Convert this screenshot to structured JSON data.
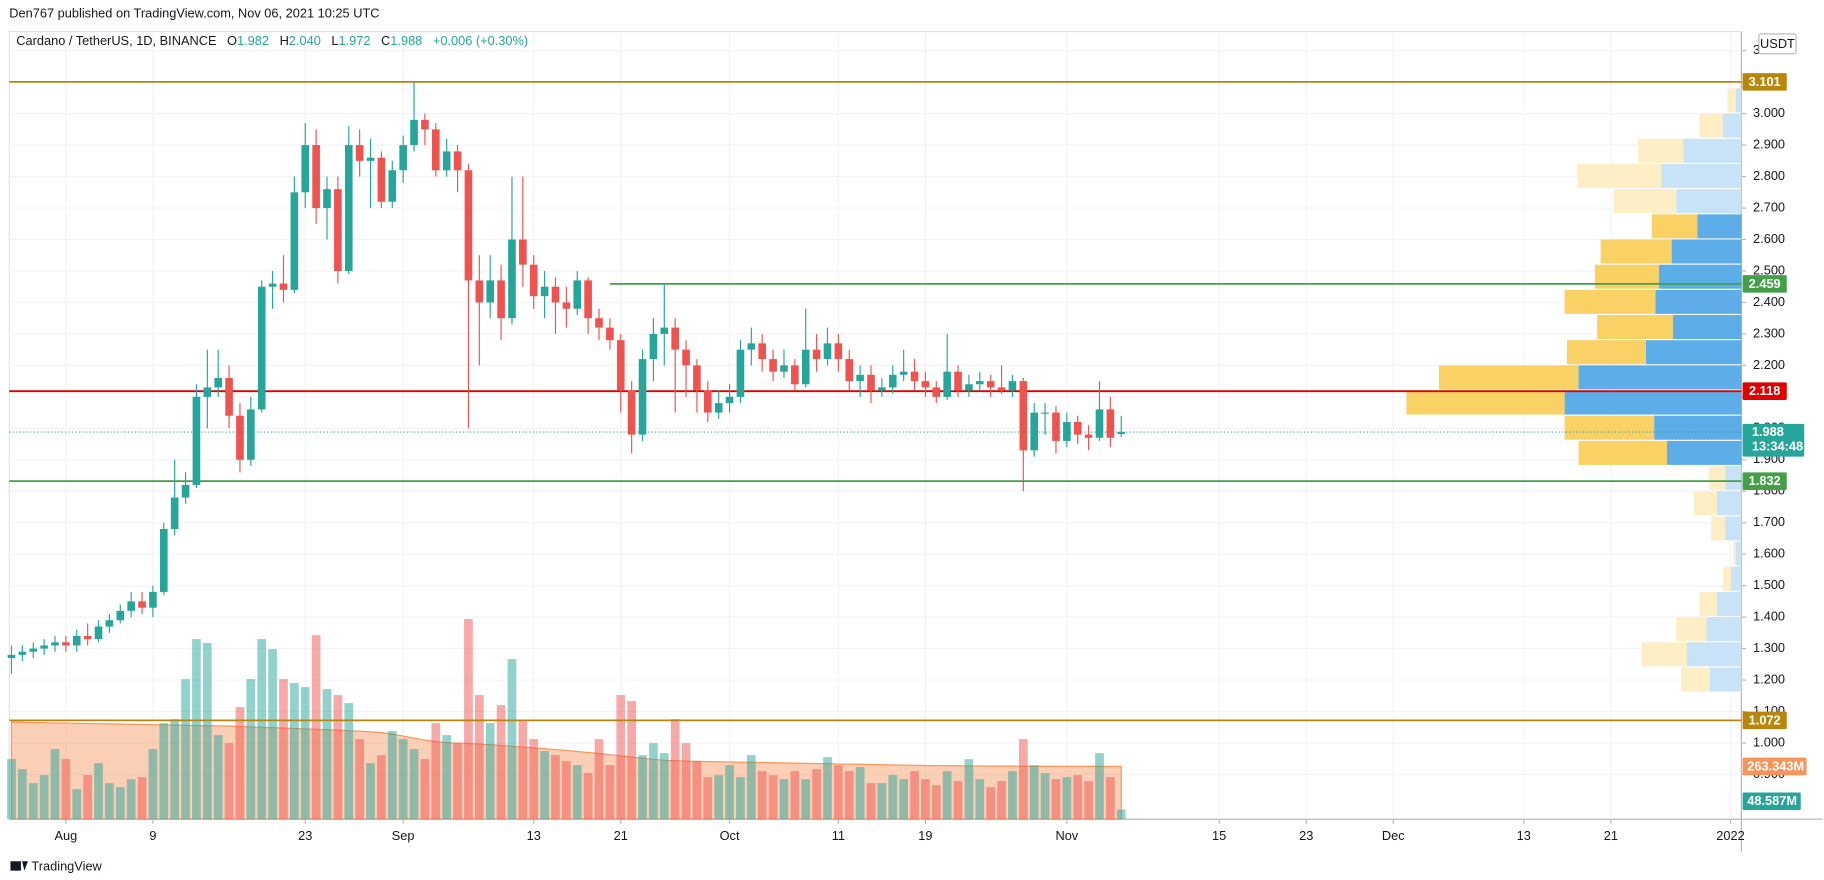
{
  "header": "Den767 published on TradingView.com, Nov 06, 2021 10:25 UTC",
  "logo": "TradingView",
  "currency": "USDT",
  "chart_data": {
    "type": "candlestick",
    "legend": {
      "symbol": "Cardano / TetherUS, 1D, BINANCE",
      "items": [
        {
          "key": "O",
          "text": "1.982"
        },
        {
          "key": "H",
          "text": "2.040"
        },
        {
          "key": "L",
          "text": "1.972"
        },
        {
          "key": "C",
          "text": "1.988"
        }
      ],
      "change": "+0.006 (+0.30%)"
    },
    "up_color": "#26a69a",
    "down_color": "#ef5350",
    "xlim": [
      -0.2,
      159
    ],
    "xticks": [
      {
        "value": 5,
        "label": "Aug"
      },
      {
        "value": 13,
        "label": "9"
      },
      {
        "value": 27,
        "label": "23"
      },
      {
        "value": 36,
        "label": "Sep"
      },
      {
        "value": 48,
        "label": "13"
      },
      {
        "value": 56,
        "label": "21"
      },
      {
        "value": 66,
        "label": "Oct"
      },
      {
        "value": 76,
        "label": "11"
      },
      {
        "value": 84,
        "label": "19"
      },
      {
        "value": 97,
        "label": "Nov"
      },
      {
        "value": 111,
        "label": "15"
      },
      {
        "value": 119,
        "label": "23"
      },
      {
        "value": 127,
        "label": "Dec"
      },
      {
        "value": 139,
        "label": "13"
      },
      {
        "value": 147,
        "label": "21"
      },
      {
        "value": 158,
        "label": "2022"
      }
    ],
    "ylim": [
      0.758,
      3.257
    ],
    "yticks": [
      {
        "value": 0.9,
        "label": "0.900"
      },
      {
        "value": 1.0,
        "label": "1.000"
      },
      {
        "value": 1.1,
        "label": "1.100"
      },
      {
        "value": 1.2,
        "label": "1.200"
      },
      {
        "value": 1.3,
        "label": "1.300"
      },
      {
        "value": 1.4,
        "label": "1.400"
      },
      {
        "value": 1.5,
        "label": "1.500"
      },
      {
        "value": 1.6,
        "label": "1.600"
      },
      {
        "value": 1.7,
        "label": "1.700"
      },
      {
        "value": 1.8,
        "label": "1.800"
      },
      {
        "value": 1.9,
        "label": "1.900"
      },
      {
        "value": 2.0,
        "label": "2.000"
      },
      {
        "value": 2.1,
        "label": "2.100"
      },
      {
        "value": 2.2,
        "label": "2.200"
      },
      {
        "value": 2.3,
        "label": "2.300"
      },
      {
        "value": 2.4,
        "label": "2.400"
      },
      {
        "value": 2.5,
        "label": "2.500"
      },
      {
        "value": 2.6,
        "label": "2.600"
      },
      {
        "value": 2.7,
        "label": "2.700"
      },
      {
        "value": 2.8,
        "label": "2.800"
      },
      {
        "value": 2.9,
        "label": "2.900"
      },
      {
        "value": 3.0,
        "label": "3.000"
      },
      {
        "value": 3.1,
        "label": "3.100"
      },
      {
        "value": 3.2,
        "label": "3.200"
      }
    ],
    "grid": true,
    "ohlc": [
      [
        1.27,
        1.31,
        1.22,
        1.28
      ],
      [
        1.28,
        1.31,
        1.26,
        1.29
      ],
      [
        1.29,
        1.32,
        1.27,
        1.3
      ],
      [
        1.3,
        1.33,
        1.28,
        1.31
      ],
      [
        1.31,
        1.34,
        1.29,
        1.32
      ],
      [
        1.32,
        1.34,
        1.29,
        1.31
      ],
      [
        1.31,
        1.36,
        1.29,
        1.34
      ],
      [
        1.34,
        1.38,
        1.31,
        1.33
      ],
      [
        1.33,
        1.39,
        1.32,
        1.37
      ],
      [
        1.37,
        1.41,
        1.35,
        1.39
      ],
      [
        1.39,
        1.44,
        1.38,
        1.42
      ],
      [
        1.42,
        1.48,
        1.4,
        1.45
      ],
      [
        1.45,
        1.48,
        1.41,
        1.43
      ],
      [
        1.43,
        1.5,
        1.4,
        1.48
      ],
      [
        1.48,
        1.7,
        1.47,
        1.68
      ],
      [
        1.68,
        1.9,
        1.66,
        1.78
      ],
      [
        1.78,
        1.86,
        1.76,
        1.82
      ],
      [
        1.82,
        2.14,
        1.81,
        2.1
      ],
      [
        2.1,
        2.25,
        2.0,
        2.13
      ],
      [
        2.13,
        2.25,
        2.1,
        2.16
      ],
      [
        2.16,
        2.2,
        2.0,
        2.04
      ],
      [
        2.04,
        2.08,
        1.86,
        1.9
      ],
      [
        1.9,
        2.1,
        1.88,
        2.06
      ],
      [
        2.06,
        2.47,
        2.05,
        2.45
      ],
      [
        2.45,
        2.5,
        2.38,
        2.46
      ],
      [
        2.46,
        2.55,
        2.4,
        2.44
      ],
      [
        2.44,
        2.8,
        2.43,
        2.75
      ],
      [
        2.75,
        2.97,
        2.7,
        2.9
      ],
      [
        2.9,
        2.95,
        2.65,
        2.7
      ],
      [
        2.7,
        2.8,
        2.6,
        2.76
      ],
      [
        2.76,
        2.8,
        2.46,
        2.5
      ],
      [
        2.5,
        2.96,
        2.49,
        2.9
      ],
      [
        2.9,
        2.95,
        2.8,
        2.85
      ],
      [
        2.85,
        2.92,
        2.7,
        2.86
      ],
      [
        2.86,
        2.88,
        2.7,
        2.72
      ],
      [
        2.72,
        2.85,
        2.7,
        2.82
      ],
      [
        2.82,
        2.93,
        2.78,
        2.9
      ],
      [
        2.9,
        3.1,
        2.88,
        2.98
      ],
      [
        2.98,
        3.0,
        2.9,
        2.95
      ],
      [
        2.95,
        2.97,
        2.8,
        2.82
      ],
      [
        2.82,
        2.92,
        2.8,
        2.88
      ],
      [
        2.88,
        2.9,
        2.75,
        2.82
      ],
      [
        2.82,
        2.84,
        2.0,
        2.47
      ],
      [
        2.47,
        2.55,
        2.2,
        2.4
      ],
      [
        2.4,
        2.55,
        2.35,
        2.47
      ],
      [
        2.47,
        2.52,
        2.28,
        2.35
      ],
      [
        2.35,
        2.8,
        2.33,
        2.6
      ],
      [
        2.6,
        2.8,
        2.45,
        2.52
      ],
      [
        2.52,
        2.55,
        2.38,
        2.42
      ],
      [
        2.42,
        2.5,
        2.35,
        2.45
      ],
      [
        2.45,
        2.48,
        2.3,
        2.4
      ],
      [
        2.4,
        2.45,
        2.32,
        2.38
      ],
      [
        2.38,
        2.5,
        2.36,
        2.47
      ],
      [
        2.47,
        2.48,
        2.3,
        2.35
      ],
      [
        2.35,
        2.38,
        2.28,
        2.32
      ],
      [
        2.32,
        2.35,
        2.25,
        2.28
      ],
      [
        2.28,
        2.3,
        2.05,
        2.12
      ],
      [
        2.12,
        2.15,
        1.92,
        1.98
      ],
      [
        1.98,
        2.25,
        1.96,
        2.22
      ],
      [
        2.22,
        2.35,
        2.15,
        2.3
      ],
      [
        2.3,
        2.46,
        2.2,
        2.32
      ],
      [
        2.32,
        2.35,
        2.05,
        2.25
      ],
      [
        2.25,
        2.28,
        2.1,
        2.2
      ],
      [
        2.2,
        2.22,
        2.05,
        2.12
      ],
      [
        2.12,
        2.15,
        2.02,
        2.05
      ],
      [
        2.05,
        2.12,
        2.03,
        2.08
      ],
      [
        2.08,
        2.14,
        2.05,
        2.1
      ],
      [
        2.1,
        2.28,
        2.08,
        2.25
      ],
      [
        2.25,
        2.32,
        2.2,
        2.27
      ],
      [
        2.27,
        2.3,
        2.18,
        2.22
      ],
      [
        2.22,
        2.25,
        2.15,
        2.18
      ],
      [
        2.18,
        2.25,
        2.16,
        2.2
      ],
      [
        2.2,
        2.22,
        2.12,
        2.14
      ],
      [
        2.14,
        2.38,
        2.13,
        2.25
      ],
      [
        2.25,
        2.3,
        2.18,
        2.22
      ],
      [
        2.22,
        2.32,
        2.2,
        2.27
      ],
      [
        2.27,
        2.3,
        2.18,
        2.22
      ],
      [
        2.22,
        2.25,
        2.12,
        2.15
      ],
      [
        2.15,
        2.2,
        2.1,
        2.17
      ],
      [
        2.17,
        2.2,
        2.08,
        2.12
      ],
      [
        2.12,
        2.16,
        2.1,
        2.13
      ],
      [
        2.13,
        2.2,
        2.11,
        2.17
      ],
      [
        2.17,
        2.25,
        2.15,
        2.18
      ],
      [
        2.18,
        2.22,
        2.12,
        2.15
      ],
      [
        2.15,
        2.18,
        2.1,
        2.13
      ],
      [
        2.13,
        2.15,
        2.08,
        2.1
      ],
      [
        2.1,
        2.3,
        2.09,
        2.18
      ],
      [
        2.18,
        2.2,
        2.1,
        2.12
      ],
      [
        2.12,
        2.17,
        2.1,
        2.14
      ],
      [
        2.14,
        2.18,
        2.12,
        2.15
      ],
      [
        2.15,
        2.17,
        2.1,
        2.13
      ],
      [
        2.13,
        2.2,
        2.11,
        2.12
      ],
      [
        2.12,
        2.17,
        2.1,
        2.15
      ],
      [
        2.15,
        2.16,
        1.8,
        1.93
      ],
      [
        1.93,
        2.08,
        1.91,
        2.05
      ],
      [
        2.05,
        2.08,
        1.98,
        2.05
      ],
      [
        2.05,
        2.07,
        1.92,
        1.96
      ],
      [
        1.96,
        2.05,
        1.94,
        2.02
      ],
      [
        2.02,
        2.04,
        1.95,
        1.98
      ],
      [
        1.98,
        2.01,
        1.93,
        1.97
      ],
      [
        1.97,
        2.15,
        1.96,
        2.06
      ],
      [
        2.06,
        2.1,
        1.94,
        1.97
      ],
      [
        1.982,
        2.04,
        1.972,
        1.988
      ]
    ],
    "volume": [
      300,
      250,
      180,
      220,
      350,
      300,
      150,
      220,
      280,
      180,
      160,
      200,
      210,
      350,
      480,
      500,
      700,
      900,
      880,
      420,
      380,
      560,
      700,
      900,
      850,
      700,
      680,
      660,
      920,
      650,
      620,
      580,
      400,
      280,
      320,
      440,
      400,
      350,
      300,
      480,
      420,
      380,
      1000,
      620,
      480,
      570,
      800,
      490,
      400,
      340,
      320,
      290,
      270,
      230,
      400,
      270,
      620,
      590,
      320,
      380,
      330,
      500,
      380,
      290,
      210,
      220,
      270,
      210,
      320,
      240,
      220,
      200,
      240,
      200,
      250,
      310,
      270,
      240,
      260,
      180,
      180,
      220,
      200,
      240,
      200,
      170,
      240,
      190,
      300,
      200,
      160,
      190,
      240,
      400,
      270,
      230,
      200,
      210,
      220,
      190,
      330,
      210,
      48.587
    ],
    "volume_ylim": [
      0,
      3930
    ],
    "volume_ma": [
      485,
      484,
      483,
      482,
      481,
      480,
      479,
      478,
      477,
      476,
      475,
      474,
      473,
      472,
      471,
      470,
      469,
      468,
      467,
      466,
      465,
      463,
      461,
      459,
      457,
      455,
      453,
      451,
      449,
      447,
      445,
      442,
      439,
      436,
      433,
      425,
      415,
      405,
      395,
      388,
      382,
      380,
      378,
      375,
      372,
      368,
      364,
      360,
      356,
      352,
      348,
      343,
      338,
      333,
      328,
      322,
      316,
      310,
      304,
      298,
      294,
      292,
      290,
      289,
      288,
      287,
      286,
      285,
      284,
      283,
      282,
      281,
      280,
      279,
      278,
      277,
      276,
      275,
      274,
      273,
      272,
      271,
      270,
      269,
      268,
      268,
      267,
      267,
      266,
      266,
      265,
      265,
      265,
      264,
      264,
      264,
      264,
      264,
      263.5,
      263.5,
      263.4,
      263.35,
      263.343
    ],
    "volume_ma_label": "263.343M",
    "volume_last_label": "48.587M",
    "volume_ma_color": "#f7945a",
    "levels": [
      {
        "value": 3.101,
        "color": "#b8860b"
      },
      {
        "value": 2.459,
        "color": "#43a047",
        "start": 55
      },
      {
        "value": 2.118,
        "color": "#e00000"
      },
      {
        "value": 1.832,
        "color": "#43a047"
      },
      {
        "value": 1.072,
        "color": "#b8860b"
      }
    ],
    "last_price": 1.988,
    "countdown": "13:34:48",
    "volume_profile": {
      "rows": [
        [
          1.16,
          1.24
        ],
        [
          1.24,
          1.32
        ],
        [
          1.32,
          1.4
        ],
        [
          1.4,
          1.48
        ],
        [
          1.48,
          1.56
        ],
        [
          1.56,
          1.64
        ],
        [
          1.64,
          1.72
        ],
        [
          1.72,
          1.8
        ],
        [
          1.8,
          1.88
        ],
        [
          1.88,
          1.96
        ],
        [
          1.96,
          2.04
        ],
        [
          2.04,
          2.12
        ],
        [
          2.12,
          2.2
        ],
        [
          2.2,
          2.28
        ],
        [
          2.28,
          2.36
        ],
        [
          2.36,
          2.44
        ],
        [
          2.44,
          2.52
        ],
        [
          2.52,
          2.6
        ],
        [
          2.6,
          2.68
        ],
        [
          2.68,
          2.76
        ],
        [
          2.76,
          2.84
        ],
        [
          2.84,
          2.92
        ],
        [
          2.92,
          3.0
        ],
        [
          3.0,
          3.08
        ]
      ],
      "up": [
        27,
        47,
        30,
        21,
        9,
        5,
        14,
        21,
        14,
        64,
        75,
        152,
        140,
        82,
        59,
        74,
        71,
        60,
        38,
        56,
        69,
        50,
        16,
        5
      ],
      "down": [
        25,
        39,
        26,
        15,
        7,
        2,
        12,
        20,
        14,
        76,
        77,
        136,
        120,
        68,
        65,
        78,
        55,
        61,
        39,
        54,
        72,
        39,
        20,
        7
      ],
      "value_area": [
        1.88,
        2.68
      ],
      "up_colors": [
        "#5dade9",
        "#c8e2f8"
      ],
      "down_colors": [
        "#fad165",
        "#fdeec6"
      ]
    }
  }
}
